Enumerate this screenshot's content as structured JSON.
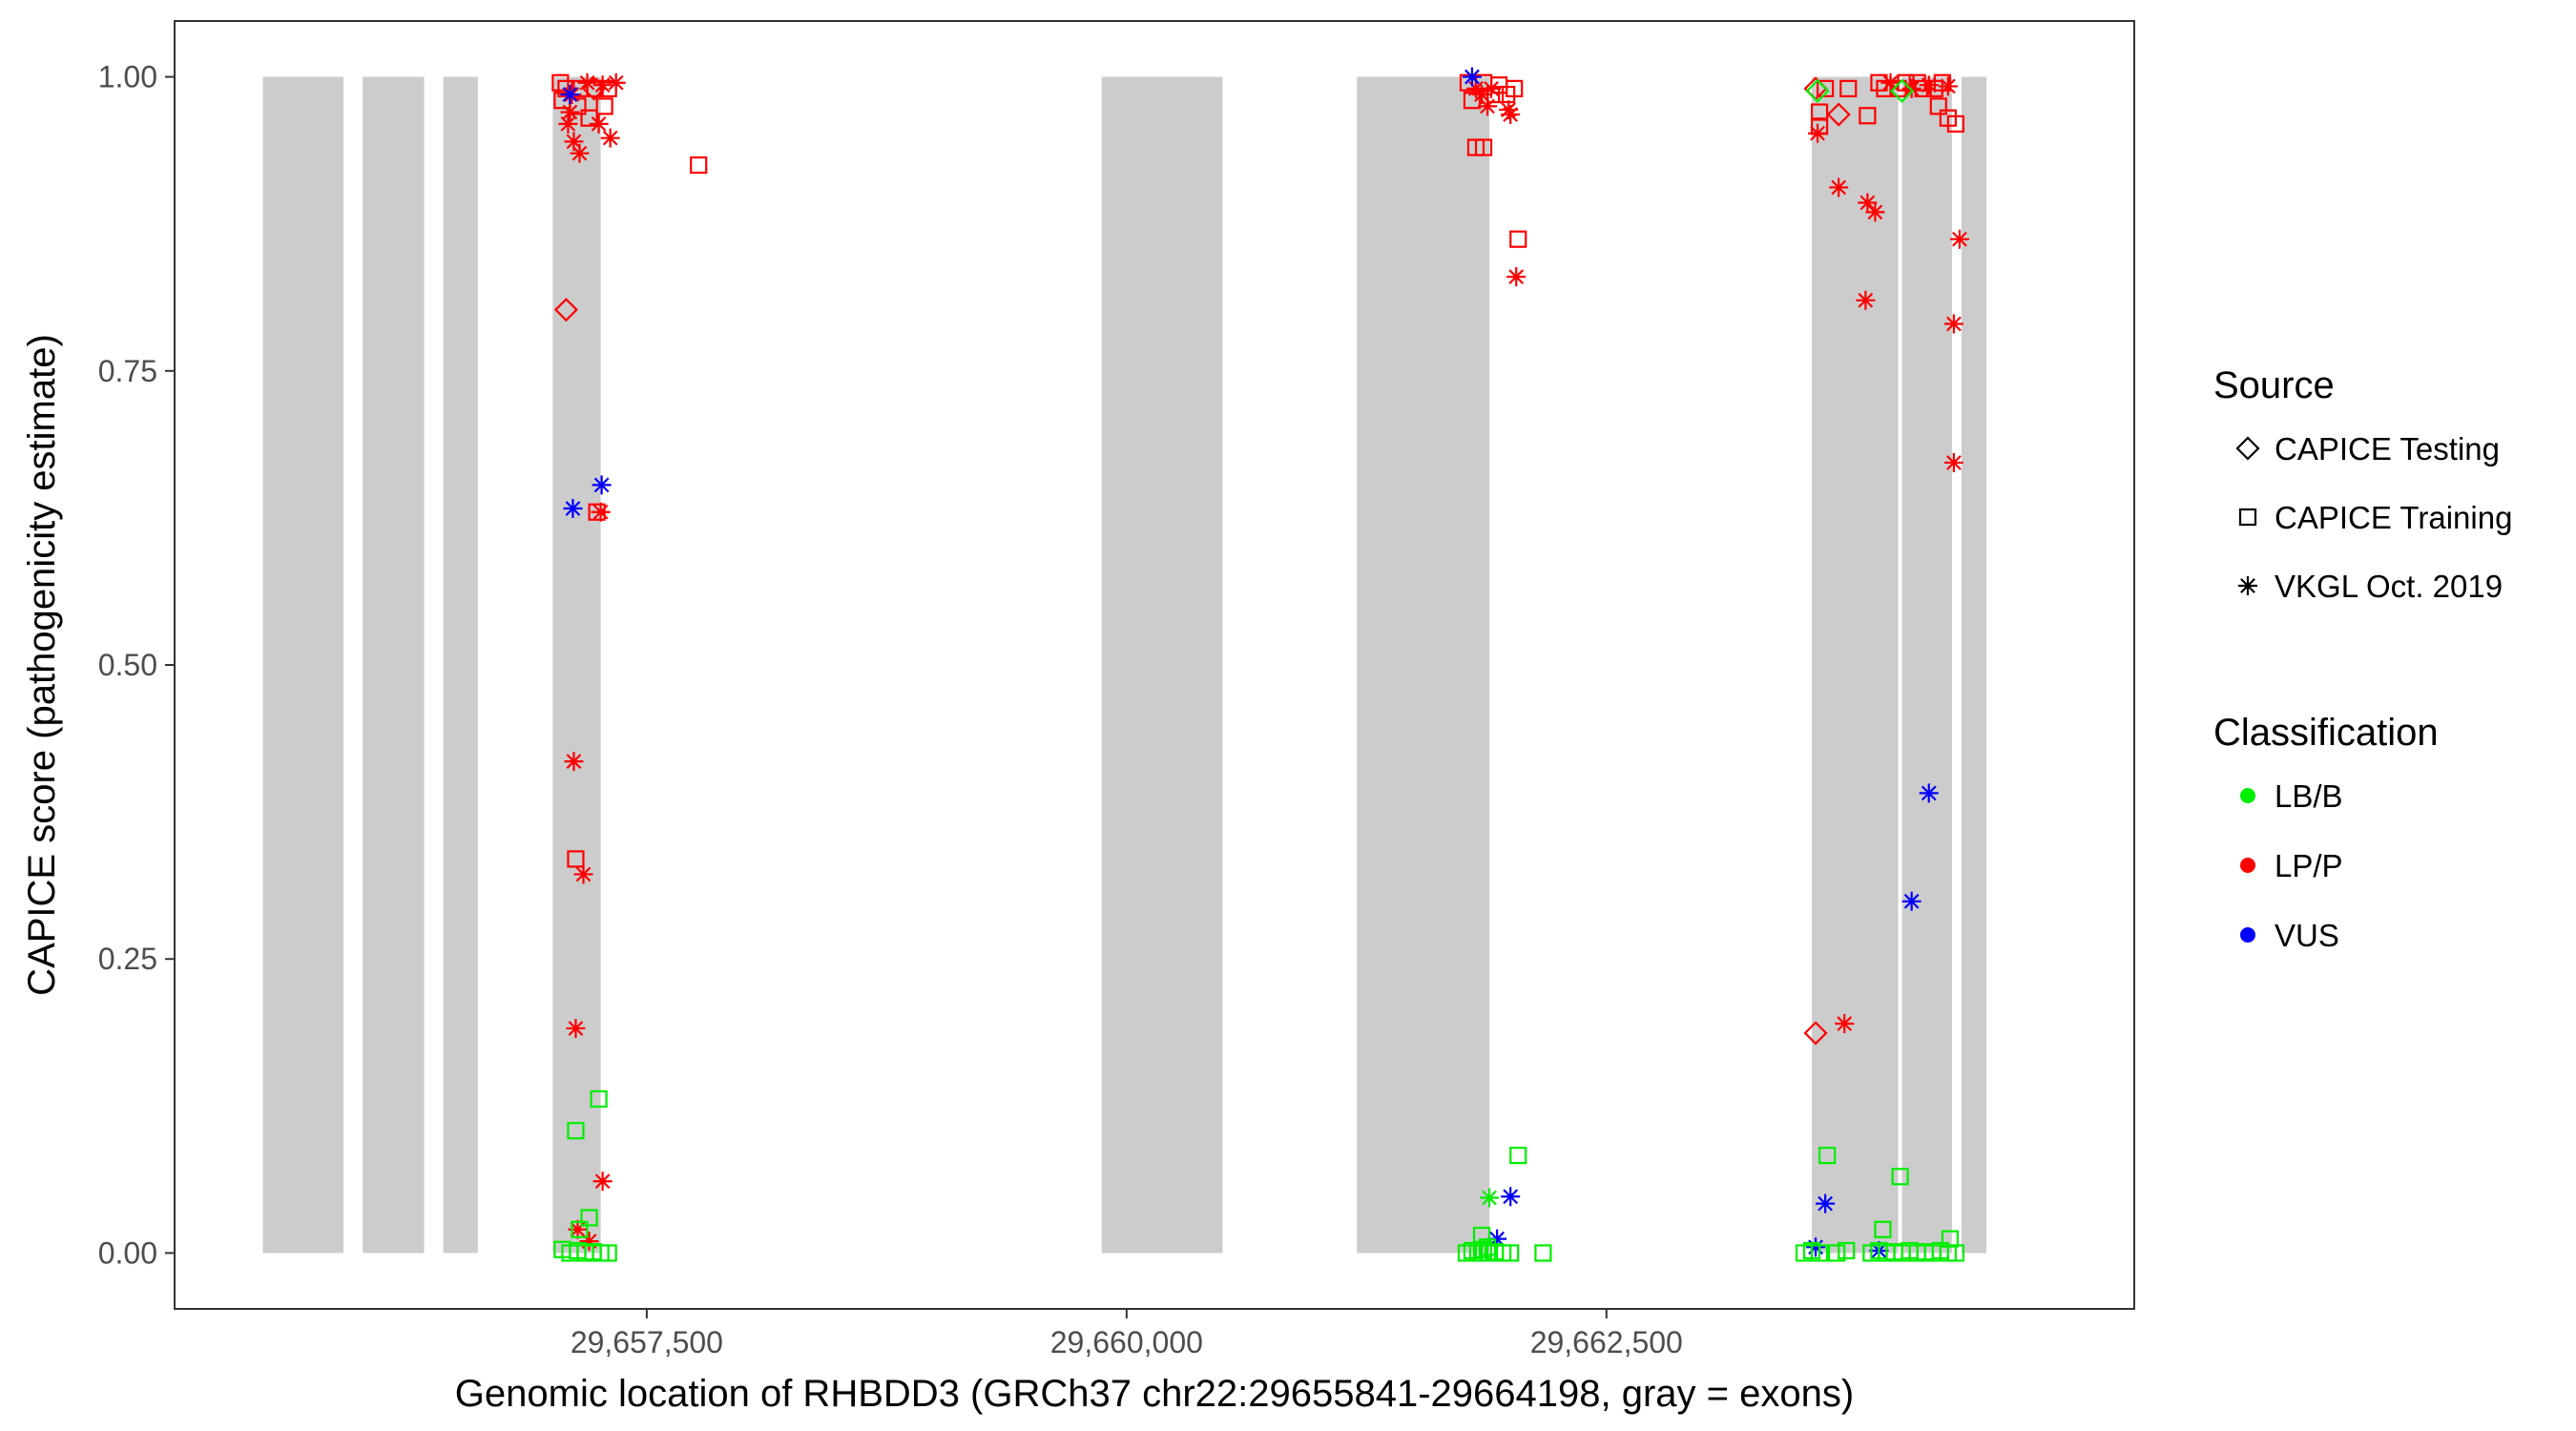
{
  "chart_data": {
    "type": "scatter",
    "title": "",
    "xlabel": "Genomic location of RHBDD3 (GRCh37 chr22:29655841-29664198, gray = exons)",
    "ylabel": "CAPICE score (pathogenicity estimate)",
    "xlim": [
      29655040,
      29665250
    ],
    "ylim": [
      -0.0475,
      1.0475
    ],
    "x_ticks": [
      29657500,
      29660000,
      29662500
    ],
    "x_tick_labels": [
      "29,657,500",
      "29,660,000",
      "29,662,500"
    ],
    "y_ticks": [
      0,
      0.25,
      0.5,
      0.75,
      1
    ],
    "y_tick_labels": [
      "0.00",
      "0.25",
      "0.50",
      "0.75",
      "1.00"
    ],
    "grid": false,
    "exons": [
      [
        29655500,
        29655920
      ],
      [
        29656020,
        29656340
      ],
      [
        29656440,
        29656620
      ],
      [
        29657010,
        29657260
      ],
      [
        29659870,
        29660500
      ],
      [
        29661200,
        29661890
      ],
      [
        29663570,
        29664020
      ],
      [
        29664040,
        29664300
      ],
      [
        29664350,
        29664480
      ]
    ],
    "legend": {
      "placement": "right",
      "shape_title": "Source",
      "shape_items": [
        {
          "label": "CAPICE Testing",
          "shape": "diamond"
        },
        {
          "label": "CAPICE Training",
          "shape": "square"
        },
        {
          "label": "VKGL Oct. 2019",
          "shape": "asterisk"
        }
      ],
      "color_title": "Classification",
      "color_items": [
        {
          "label": "LB/B",
          "color": "#00ee00"
        },
        {
          "label": "LP/P",
          "color": "#ff0000"
        },
        {
          "label": "VUS",
          "color": "#0000ff"
        }
      ]
    },
    "colors": {
      "LB/B": "#00ee00",
      "LP/P": "#ff0000",
      "VUS": "#0000ff",
      "exon": "#cccccc"
    },
    "series": [
      {
        "name": "LP/P",
        "points": [
          [
            29657050,
            0.995,
            "square"
          ],
          [
            29657080,
            0.99,
            "square"
          ],
          [
            29657110,
            0.985,
            "asterisk"
          ],
          [
            29657150,
            0.99,
            "square"
          ],
          [
            29657190,
            0.995,
            "asterisk"
          ],
          [
            29657230,
            0.99,
            "square"
          ],
          [
            29657270,
            0.993,
            "asterisk"
          ],
          [
            29657300,
            0.99,
            "square"
          ],
          [
            29657340,
            0.995,
            "asterisk"
          ],
          [
            29657060,
            0.98,
            "square"
          ],
          [
            29657100,
            0.97,
            "asterisk"
          ],
          [
            29657140,
            0.975,
            "square"
          ],
          [
            29657200,
            0.965,
            "square"
          ],
          [
            29657250,
            0.96,
            "asterisk"
          ],
          [
            29657280,
            0.975,
            "square"
          ],
          [
            29657090,
            0.96,
            "asterisk"
          ],
          [
            29657120,
            0.945,
            "asterisk"
          ],
          [
            29657150,
            0.935,
            "asterisk"
          ],
          [
            29657310,
            0.948,
            "asterisk"
          ],
          [
            29657225,
            0.99,
            "diamond"
          ],
          [
            29657770,
            0.925,
            "square"
          ],
          [
            29657080,
            0.802,
            "diamond"
          ],
          [
            29657240,
            0.63,
            "square"
          ],
          [
            29657260,
            0.63,
            "asterisk"
          ],
          [
            29657120,
            0.418,
            "asterisk"
          ],
          [
            29657130,
            0.335,
            "square"
          ],
          [
            29657170,
            0.322,
            "asterisk"
          ],
          [
            29657130,
            0.191,
            "asterisk"
          ],
          [
            29657270,
            0.061,
            "asterisk"
          ],
          [
            29657140,
            0.02,
            "asterisk"
          ],
          [
            29657200,
            0.01,
            "asterisk"
          ],
          [
            29661780,
            0.995,
            "square"
          ],
          [
            29661820,
            0.99,
            "asterisk"
          ],
          [
            29661860,
            0.995,
            "square"
          ],
          [
            29661900,
            0.99,
            "asterisk"
          ],
          [
            29661940,
            0.993,
            "square"
          ],
          [
            29661980,
            0.985,
            "square"
          ],
          [
            29662020,
            0.99,
            "square"
          ],
          [
            29661800,
            0.98,
            "square"
          ],
          [
            29661850,
            0.985,
            "asterisk"
          ],
          [
            29661880,
            0.975,
            "asterisk"
          ],
          [
            29661920,
            0.985,
            "square"
          ],
          [
            29661990,
            0.972,
            "asterisk"
          ],
          [
            29662000,
            0.968,
            "asterisk"
          ],
          [
            29661820,
            0.94,
            "square"
          ],
          [
            29661860,
            0.94,
            "square"
          ],
          [
            29662040,
            0.862,
            "square"
          ],
          [
            29662030,
            0.83,
            "asterisk"
          ],
          [
            29663590,
            0.99,
            "diamond"
          ],
          [
            29663640,
            0.99,
            "square"
          ],
          [
            29663760,
            0.99,
            "square"
          ],
          [
            29663610,
            0.97,
            "square"
          ],
          [
            29663710,
            0.968,
            "diamond"
          ],
          [
            29663600,
            0.952,
            "asterisk"
          ],
          [
            29663610,
            0.958,
            "square"
          ],
          [
            29663860,
            0.967,
            "square"
          ],
          [
            29663710,
            0.906,
            "asterisk"
          ],
          [
            29663860,
            0.893,
            "asterisk"
          ],
          [
            29663900,
            0.885,
            "asterisk"
          ],
          [
            29663850,
            0.81,
            "asterisk"
          ],
          [
            29663590,
            0.187,
            "diamond"
          ],
          [
            29663740,
            0.195,
            "asterisk"
          ],
          [
            29663920,
            0.995,
            "square"
          ],
          [
            29663950,
            0.99,
            "square"
          ],
          [
            29663980,
            0.995,
            "asterisk"
          ],
          [
            29664020,
            0.99,
            "square"
          ],
          [
            29664060,
            0.995,
            "square"
          ],
          [
            29664090,
            0.99,
            "asterisk"
          ],
          [
            29664120,
            0.995,
            "square"
          ],
          [
            29664150,
            0.99,
            "square"
          ],
          [
            29664180,
            0.993,
            "asterisk"
          ],
          [
            29664210,
            0.99,
            "square"
          ],
          [
            29664250,
            0.995,
            "square"
          ],
          [
            29664280,
            0.992,
            "asterisk"
          ],
          [
            29664230,
            0.975,
            "square"
          ],
          [
            29664280,
            0.965,
            "square"
          ],
          [
            29664320,
            0.96,
            "square"
          ],
          [
            29664340,
            0.862,
            "asterisk"
          ],
          [
            29664310,
            0.79,
            "asterisk"
          ],
          [
            29664310,
            0.672,
            "asterisk"
          ]
        ]
      },
      {
        "name": "VUS",
        "points": [
          [
            29657100,
            0.985,
            "asterisk"
          ],
          [
            29657115,
            0.633,
            "asterisk"
          ],
          [
            29657265,
            0.653,
            "asterisk"
          ],
          [
            29661800,
            1.0,
            "asterisk"
          ],
          [
            29661930,
            0.012,
            "asterisk"
          ],
          [
            29662000,
            0.048,
            "asterisk"
          ],
          [
            29663590,
            0.005,
            "asterisk"
          ],
          [
            29663640,
            0.042,
            "asterisk"
          ],
          [
            29663920,
            0.002,
            "asterisk"
          ],
          [
            29664090,
            0.299,
            "asterisk"
          ],
          [
            29664180,
            0.391,
            "asterisk"
          ]
        ]
      },
      {
        "name": "LB/B",
        "points": [
          [
            29657060,
            0.003,
            "square"
          ],
          [
            29657100,
            0.0,
            "square"
          ],
          [
            29657140,
            0.002,
            "square"
          ],
          [
            29657180,
            0.0,
            "square"
          ],
          [
            29657220,
            0.001,
            "square"
          ],
          [
            29657260,
            0.0,
            "square"
          ],
          [
            29657300,
            0.0,
            "square"
          ],
          [
            29657150,
            0.02,
            "square"
          ],
          [
            29657200,
            0.03,
            "square"
          ],
          [
            29657130,
            0.104,
            "square"
          ],
          [
            29657250,
            0.131,
            "square"
          ],
          [
            29661770,
            0.0,
            "square"
          ],
          [
            29661800,
            0.002,
            "square"
          ],
          [
            29661830,
            0.0,
            "square"
          ],
          [
            29661860,
            0.003,
            "square"
          ],
          [
            29661890,
            0.0,
            "square"
          ],
          [
            29661920,
            0.001,
            "square"
          ],
          [
            29661960,
            0.0,
            "square"
          ],
          [
            29662000,
            0.0,
            "square"
          ],
          [
            29662170,
            0.0,
            "square"
          ],
          [
            29661850,
            0.015,
            "square"
          ],
          [
            29661880,
            0.005,
            "square"
          ],
          [
            29662040,
            0.083,
            "square"
          ],
          [
            29661890,
            0.047,
            "asterisk"
          ],
          [
            29663530,
            0.0,
            "square"
          ],
          [
            29663570,
            0.002,
            "square"
          ],
          [
            29663610,
            0.0,
            "square"
          ],
          [
            29663700,
            0.0,
            "square"
          ],
          [
            29663750,
            0.002,
            "square"
          ],
          [
            29663650,
            0.083,
            "square"
          ],
          [
            29663600,
            0.988,
            "diamond"
          ],
          [
            29663880,
            0.0,
            "square"
          ],
          [
            29663920,
            0.002,
            "square"
          ],
          [
            29663960,
            0.0,
            "square"
          ],
          [
            29664000,
            0.001,
            "square"
          ],
          [
            29664040,
            0.0,
            "square"
          ],
          [
            29664080,
            0.002,
            "square"
          ],
          [
            29664120,
            0.0,
            "square"
          ],
          [
            29664160,
            0.001,
            "square"
          ],
          [
            29664200,
            0.0,
            "square"
          ],
          [
            29664240,
            0.002,
            "square"
          ],
          [
            29664280,
            0.0,
            "square"
          ],
          [
            29664320,
            0.0,
            "square"
          ],
          [
            29663940,
            0.02,
            "square"
          ],
          [
            29664290,
            0.012,
            "square"
          ],
          [
            29664030,
            0.065,
            "square"
          ],
          [
            29664040,
            0.988,
            "diamond"
          ]
        ]
      }
    ]
  }
}
